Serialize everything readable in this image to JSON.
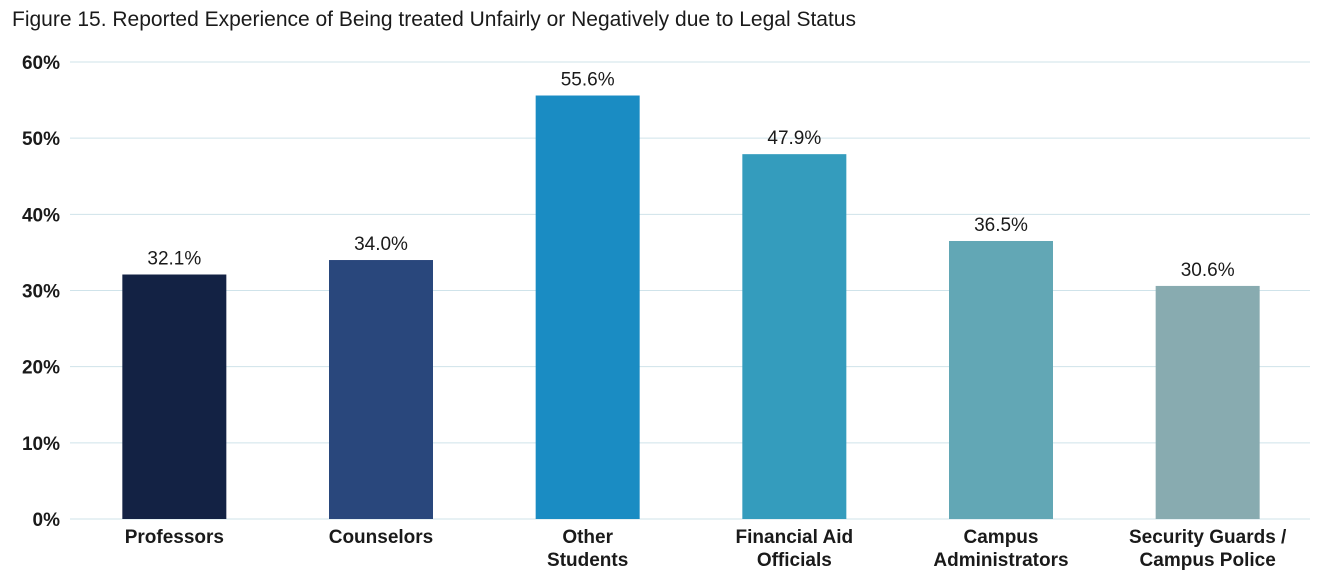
{
  "chart_data": {
    "type": "bar",
    "title": "Figure 15. Reported Experience of Being treated Unfairly or Negatively due to Legal Status",
    "categories": [
      [
        "Professors"
      ],
      [
        "Counselors"
      ],
      [
        "Other",
        "Students"
      ],
      [
        "Financial Aid",
        "Officials"
      ],
      [
        "Campus",
        "Administrators"
      ],
      [
        "Security Guards /",
        "Campus Police"
      ]
    ],
    "values": [
      32.1,
      34.0,
      55.6,
      47.9,
      36.5,
      30.6
    ],
    "data_labels": [
      "32.1%",
      "34.0%",
      "55.6%",
      "47.9%",
      "36.5%",
      "30.6%"
    ],
    "colors": [
      "#132244",
      "#29477c",
      "#1a8cc3",
      "#349cbd",
      "#62a7b5",
      "#88abb0"
    ],
    "y_ticks": [
      "0%",
      "10%",
      "20%",
      "30%",
      "40%",
      "50%",
      "60%"
    ],
    "ylim": [
      0,
      60
    ],
    "grid": true,
    "xlabel": "",
    "ylabel": ""
  }
}
